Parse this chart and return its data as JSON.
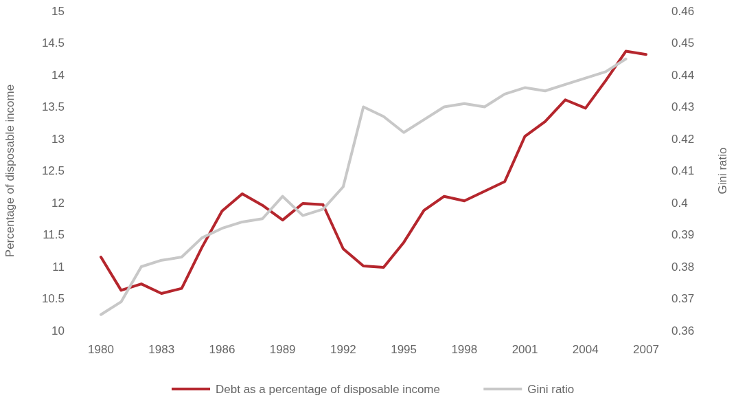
{
  "chart_data": {
    "type": "line",
    "ylabel": "Percentage of disposable income",
    "y2label": "Gini ratio",
    "xlim": [
      1980,
      2007
    ],
    "xticks": [
      1980,
      1983,
      1986,
      1989,
      1992,
      1995,
      1998,
      2001,
      2004,
      2007
    ],
    "ylim": [
      10,
      15
    ],
    "yticks": [
      10,
      10.5,
      11,
      11.5,
      12,
      12.5,
      13,
      13.5,
      14,
      14.5,
      15
    ],
    "y2lim": [
      0.36,
      0.46
    ],
    "y2ticks": [
      0.36,
      0.37,
      0.38,
      0.39,
      0.4,
      0.41,
      0.42,
      0.43,
      0.44,
      0.45,
      0.46
    ],
    "grid": false,
    "legend": "bottom",
    "series": [
      {
        "name": "Debt as a percentage of disposable income",
        "color": "#b5262d",
        "x": [
          1980,
          1981,
          1982,
          1983,
          1984,
          1985,
          1986,
          1987,
          1988,
          1989,
          1990,
          1991,
          1992,
          1993,
          1994,
          1995,
          1996,
          1997,
          1998,
          1999,
          2000,
          2001,
          2002,
          2003,
          2004,
          2005,
          2006,
          2007
        ],
        "values": [
          11.15,
          10.63,
          10.73,
          10.58,
          10.66,
          11.3,
          11.87,
          12.14,
          11.96,
          11.73,
          11.99,
          11.97,
          11.28,
          11.01,
          10.99,
          11.38,
          11.88,
          12.1,
          12.03,
          12.18,
          12.33,
          13.04,
          13.27,
          13.61,
          13.48,
          13.91,
          14.37,
          14.32
        ]
      },
      {
        "name": "Gini ratio",
        "color": "#c8c8c8",
        "axis": "y2",
        "x": [
          1980,
          1981,
          1982,
          1983,
          1984,
          1985,
          1986,
          1987,
          1988,
          1989,
          1990,
          1991,
          1992,
          1993,
          1994,
          1995,
          1996,
          1997,
          1998,
          1999,
          2000,
          2001,
          2002,
          2003,
          2004,
          2005,
          2006
        ],
        "values": [
          0.365,
          0.369,
          0.38,
          0.382,
          0.383,
          0.389,
          0.392,
          0.394,
          0.395,
          0.402,
          0.396,
          0.398,
          0.405,
          0.43,
          0.427,
          0.422,
          0.426,
          0.43,
          0.431,
          0.43,
          0.434,
          0.436,
          0.435,
          0.437,
          0.439,
          0.441,
          0.445
        ]
      }
    ]
  }
}
